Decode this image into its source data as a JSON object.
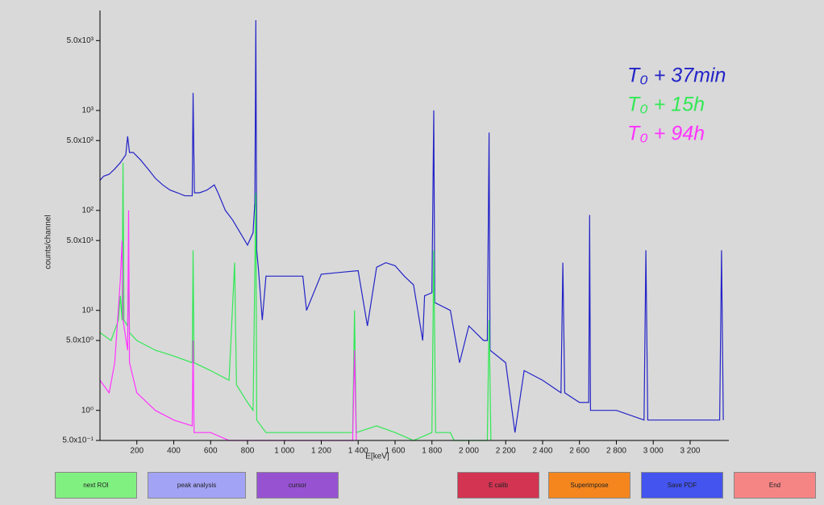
{
  "chart_data": {
    "type": "line",
    "log_y": true,
    "xlabel": "E[keV]",
    "ylabel": "counts/channel",
    "xlim": [
      0,
      3410
    ],
    "ylim": [
      0.5,
      10000
    ],
    "xticks": [
      200,
      400,
      600,
      800,
      {
        "value": 1000,
        "label": "1 000"
      },
      {
        "value": 1200,
        "label": "1 200"
      },
      {
        "value": 1400,
        "label": "1 400"
      },
      {
        "value": 1600,
        "label": "1 600"
      },
      {
        "value": 1800,
        "label": "1 800"
      },
      {
        "value": 2000,
        "label": "2 000"
      },
      {
        "value": 2200,
        "label": "2 200"
      },
      {
        "value": 2400,
        "label": "2 400"
      },
      {
        "value": 2600,
        "label": "2 600"
      },
      {
        "value": 2800,
        "label": "2 800"
      },
      {
        "value": 3000,
        "label": "3 000"
      },
      {
        "value": 3200,
        "label": "3 200"
      }
    ],
    "yticks": [
      {
        "value": 0.5,
        "label": "5.0x10⁻¹"
      },
      {
        "value": 1,
        "label": "10⁰"
      },
      {
        "value": 5,
        "label": "5.0x10⁰"
      },
      {
        "value": 10,
        "label": "10¹"
      },
      {
        "value": 50,
        "label": "5.0x10¹"
      },
      {
        "value": 100,
        "label": "10²"
      },
      {
        "value": 500,
        "label": "5.0x10²"
      },
      {
        "value": 1000,
        "label": "10³"
      },
      {
        "value": 5000,
        "label": "5.0x10³"
      }
    ],
    "legend": "top-right",
    "series": [
      {
        "name": "T₀ + 37min",
        "color": "#2323c8",
        "x": [
          0,
          20,
          50,
          80,
          110,
          140,
          150,
          160,
          180,
          220,
          260,
          300,
          340,
          380,
          420,
          460,
          500,
          505,
          512,
          540,
          580,
          620,
          640,
          680,
          720,
          760,
          800,
          830,
          840,
          845,
          850,
          860,
          880,
          900,
          1000,
          1100,
          1120,
          1200,
          1300,
          1400,
          1450,
          1500,
          1550,
          1600,
          1650,
          1700,
          1750,
          1760,
          1800,
          1810,
          1815,
          1900,
          1950,
          2000,
          2080,
          2100,
          2110,
          2115,
          2200,
          2250,
          2300,
          2400,
          2500,
          2510,
          2520,
          2600,
          2650,
          2655,
          2660,
          2800,
          2950,
          2960,
          2970,
          3000,
          3200,
          3360,
          3370,
          3380
        ],
        "values": [
          200,
          220,
          230,
          260,
          300,
          360,
          550,
          380,
          380,
          320,
          260,
          210,
          180,
          160,
          150,
          140,
          140,
          1500,
          150,
          150,
          160,
          180,
          150,
          100,
          80,
          60,
          45,
          60,
          120,
          8000,
          40,
          25,
          8,
          22,
          22,
          22,
          10,
          23,
          24,
          25,
          7,
          27,
          30,
          28,
          22,
          18,
          5,
          14,
          15,
          1000,
          12,
          10,
          3,
          7,
          5,
          5,
          600,
          4,
          3,
          0.6,
          2.5,
          2,
          1.5,
          30,
          1.5,
          1.2,
          1.2,
          90,
          1,
          1,
          0.8,
          40,
          0.8,
          0.8,
          0.8,
          0.8,
          40,
          0.8
        ]
      },
      {
        "name": "T₀ + 15h",
        "color": "#33e855",
        "x": [
          0,
          60,
          100,
          110,
          120,
          125,
          130,
          150,
          155,
          160,
          200,
          300,
          400,
          500,
          505,
          510,
          600,
          700,
          730,
          740,
          800,
          830,
          845,
          850,
          900,
          1000,
          1200,
          1370,
          1380,
          1390,
          1500,
          1600,
          1700,
          1800,
          1810,
          1820,
          1900,
          1920,
          2100,
          2110,
          2120
        ],
        "values": [
          6,
          5,
          8,
          14,
          8,
          300,
          8,
          7,
          30,
          6,
          5,
          4,
          3.5,
          3,
          40,
          3,
          2.5,
          2,
          30,
          1.8,
          1.2,
          1,
          150,
          0.8,
          0.6,
          0.6,
          0.6,
          0.6,
          10,
          0.6,
          0.7,
          0.6,
          0.5,
          0.6,
          40,
          0.6,
          0.6,
          0.5,
          0.5,
          8,
          0.5
        ]
      },
      {
        "name": "T₀ + 94h",
        "color": "#ff33ff",
        "x": [
          0,
          50,
          80,
          110,
          120,
          125,
          150,
          155,
          160,
          200,
          300,
          400,
          500,
          505,
          510,
          600,
          700,
          1370,
          1380,
          1390
        ],
        "values": [
          2,
          1.5,
          3,
          20,
          50,
          8,
          4,
          100,
          3,
          1.5,
          1,
          0.8,
          0.7,
          5,
          0.6,
          0.6,
          0.5,
          0.5,
          4,
          0.5
        ]
      }
    ]
  },
  "buttons": [
    "next ROI",
    "peak analysis",
    "cursor",
    "E calib",
    "Superimpose",
    "Save PDF",
    "End"
  ]
}
